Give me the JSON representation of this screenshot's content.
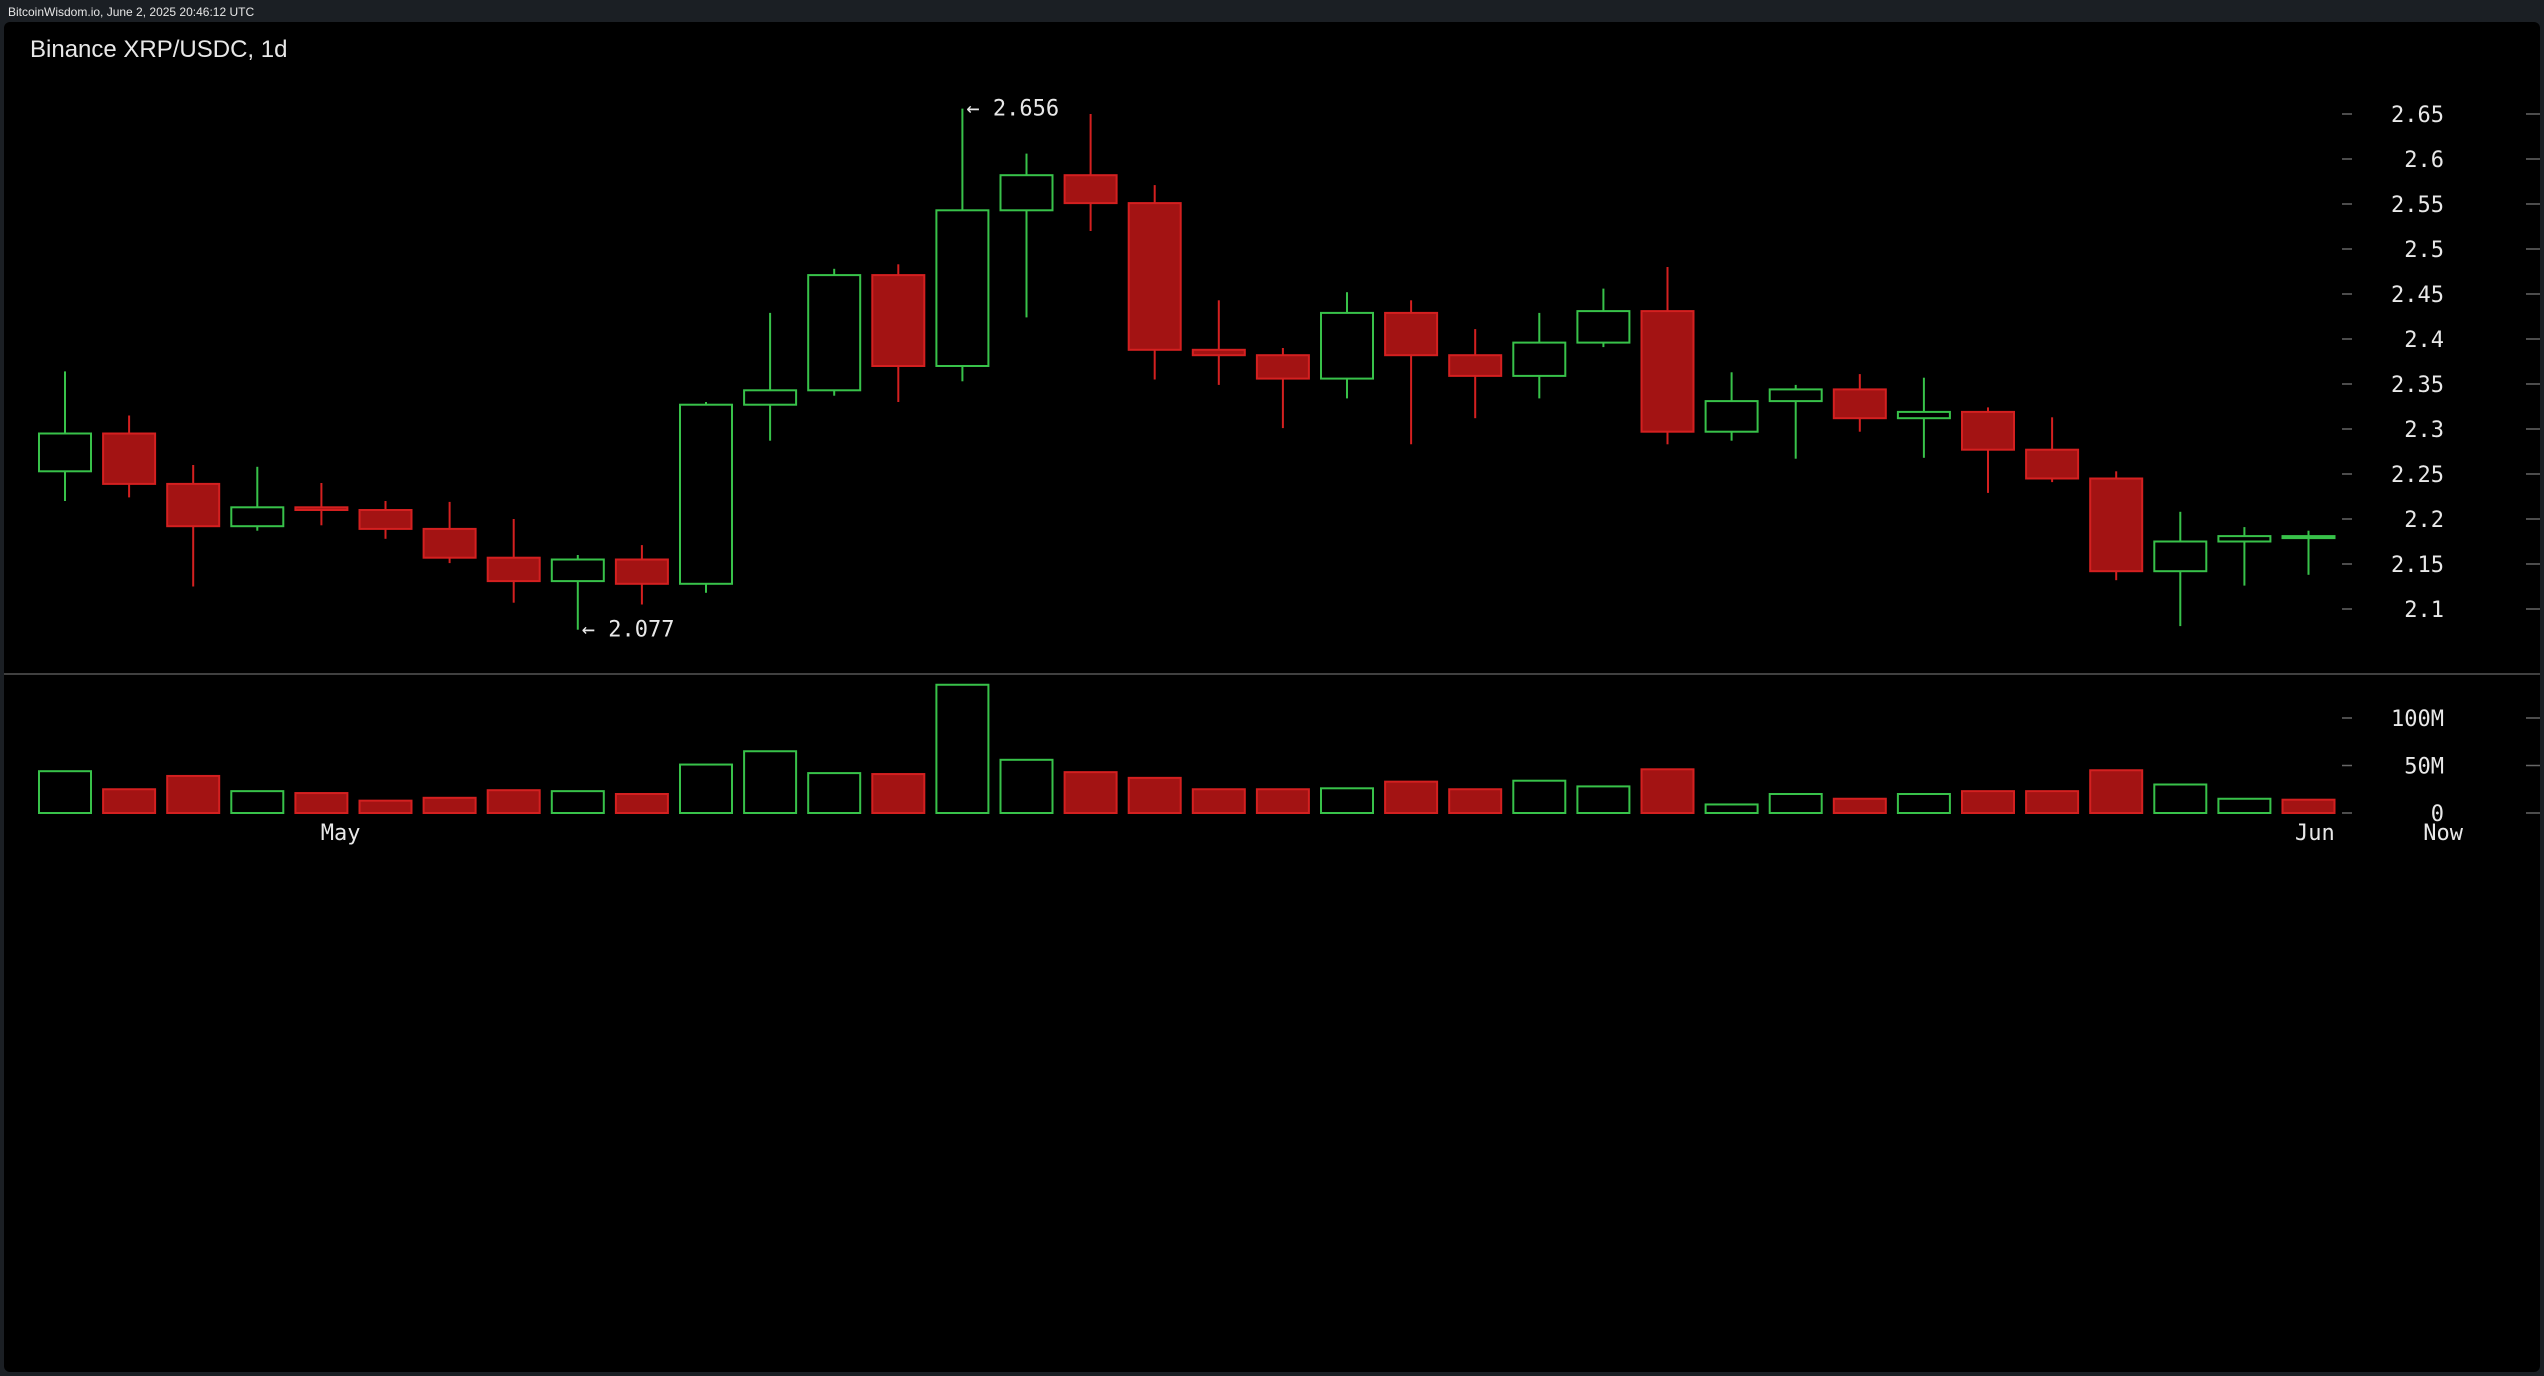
{
  "header": {
    "stamp": "BitcoinWisdom.io, June 2, 2025 20:46:12 UTC",
    "title": "Binance XRP/USDC, 1d"
  },
  "colors": {
    "up": "#38c24a",
    "down": "#a31313",
    "down_edge": "#d42020",
    "grid": "#444444",
    "background": "#000000"
  },
  "chart_data": [
    {
      "type": "candlestick",
      "title": "Binance XRP/USDC, 1d",
      "ylim": [
        2.045,
        2.675
      ],
      "y_ticks": [
        "2.65",
        "2.6",
        "2.55",
        "2.5",
        "2.45",
        "2.4",
        "2.35",
        "2.3",
        "2.25",
        "2.2",
        "2.15",
        "2.1"
      ],
      "x_labels": [
        {
          "label": "May",
          "index": 4.3
        },
        {
          "label": "Jun",
          "index": 35.1
        },
        {
          "label": "Now",
          "index": 37.1
        }
      ],
      "annotations": [
        {
          "text": "← 2.656",
          "index": 14,
          "value": 2.656
        },
        {
          "text": "← 2.077",
          "index": 8,
          "value": 2.077
        }
      ],
      "candles": [
        {
          "o": 2.253,
          "h": 2.364,
          "l": 2.22,
          "c": 2.295
        },
        {
          "o": 2.295,
          "h": 2.315,
          "l": 2.224,
          "c": 2.239
        },
        {
          "o": 2.239,
          "h": 2.26,
          "l": 2.125,
          "c": 2.192
        },
        {
          "o": 2.192,
          "h": 2.258,
          "l": 2.187,
          "c": 2.213
        },
        {
          "o": 2.213,
          "h": 2.24,
          "l": 2.193,
          "c": 2.21
        },
        {
          "o": 2.21,
          "h": 2.22,
          "l": 2.178,
          "c": 2.189
        },
        {
          "o": 2.189,
          "h": 2.219,
          "l": 2.151,
          "c": 2.157
        },
        {
          "o": 2.157,
          "h": 2.2,
          "l": 2.107,
          "c": 2.131
        },
        {
          "o": 2.131,
          "h": 2.16,
          "l": 2.077,
          "c": 2.155
        },
        {
          "o": 2.155,
          "h": 2.171,
          "l": 2.105,
          "c": 2.128
        },
        {
          "o": 2.128,
          "h": 2.33,
          "l": 2.118,
          "c": 2.327
        },
        {
          "o": 2.327,
          "h": 2.429,
          "l": 2.287,
          "c": 2.343
        },
        {
          "o": 2.343,
          "h": 2.478,
          "l": 2.337,
          "c": 2.471
        },
        {
          "o": 2.471,
          "h": 2.483,
          "l": 2.33,
          "c": 2.37
        },
        {
          "o": 2.37,
          "h": 2.656,
          "l": 2.353,
          "c": 2.543
        },
        {
          "o": 2.543,
          "h": 2.606,
          "l": 2.424,
          "c": 2.582
        },
        {
          "o": 2.582,
          "h": 2.65,
          "l": 2.52,
          "c": 2.551
        },
        {
          "o": 2.551,
          "h": 2.571,
          "l": 2.355,
          "c": 2.388
        },
        {
          "o": 2.388,
          "h": 2.443,
          "l": 2.349,
          "c": 2.382
        },
        {
          "o": 2.382,
          "h": 2.39,
          "l": 2.301,
          "c": 2.356
        },
        {
          "o": 2.356,
          "h": 2.452,
          "l": 2.334,
          "c": 2.429
        },
        {
          "o": 2.429,
          "h": 2.443,
          "l": 2.283,
          "c": 2.382
        },
        {
          "o": 2.382,
          "h": 2.411,
          "l": 2.312,
          "c": 2.359
        },
        {
          "o": 2.359,
          "h": 2.429,
          "l": 2.334,
          "c": 2.396
        },
        {
          "o": 2.396,
          "h": 2.456,
          "l": 2.391,
          "c": 2.431
        },
        {
          "o": 2.431,
          "h": 2.48,
          "l": 2.283,
          "c": 2.297
        },
        {
          "o": 2.297,
          "h": 2.363,
          "l": 2.287,
          "c": 2.331
        },
        {
          "o": 2.331,
          "h": 2.349,
          "l": 2.267,
          "c": 2.344
        },
        {
          "o": 2.344,
          "h": 2.361,
          "l": 2.297,
          "c": 2.312
        },
        {
          "o": 2.312,
          "h": 2.357,
          "l": 2.268,
          "c": 2.319
        },
        {
          "o": 2.319,
          "h": 2.324,
          "l": 2.229,
          "c": 2.277
        },
        {
          "o": 2.277,
          "h": 2.313,
          "l": 2.241,
          "c": 2.245
        },
        {
          "o": 2.245,
          "h": 2.253,
          "l": 2.132,
          "c": 2.142
        },
        {
          "o": 2.142,
          "h": 2.208,
          "l": 2.081,
          "c": 2.175
        },
        {
          "o": 2.175,
          "h": 2.191,
          "l": 2.126,
          "c": 2.181
        },
        {
          "o": 2.181,
          "h": 2.187,
          "l": 2.138,
          "c": 2.181
        }
      ]
    },
    {
      "type": "bar",
      "title": "",
      "ylim": [
        0,
        135
      ],
      "y_ticks": [
        {
          "label": "100M",
          "value": 100
        },
        {
          "label": "50M",
          "value": 50
        },
        {
          "label": "0",
          "value": 0
        }
      ],
      "unit": "M",
      "values": [
        44,
        25,
        39,
        23,
        21,
        13,
        16,
        24,
        23,
        20,
        51,
        65,
        42,
        41,
        135,
        56,
        43,
        37,
        25,
        25,
        26,
        33,
        25,
        34,
        28,
        46,
        9,
        20,
        15,
        20,
        23,
        23,
        45,
        30,
        15,
        14
      ],
      "direction": [
        "up",
        "down",
        "down",
        "up",
        "down",
        "down",
        "down",
        "down",
        "up",
        "down",
        "up",
        "up",
        "up",
        "down",
        "up",
        "up",
        "down",
        "down",
        "down",
        "down",
        "up",
        "down",
        "down",
        "up",
        "up",
        "down",
        "up",
        "up",
        "down",
        "up",
        "down",
        "down",
        "down",
        "up",
        "up",
        "down"
      ]
    }
  ]
}
